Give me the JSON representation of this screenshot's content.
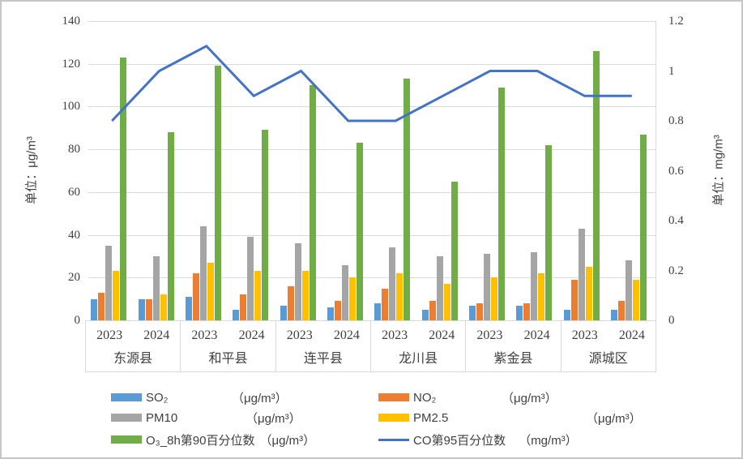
{
  "chart_data": {
    "type": "bar+line",
    "districts": [
      "东源县",
      "和平县",
      "连平县",
      "龙川县",
      "紫金县",
      "源城区"
    ],
    "years": [
      "2023",
      "2024"
    ],
    "left_axis": {
      "title": "单位：μg/m³",
      "min": 0,
      "max": 140,
      "step": 20,
      "ticks": [
        "0",
        "20",
        "40",
        "60",
        "80",
        "100",
        "120",
        "140"
      ]
    },
    "right_axis": {
      "title": "单位：mg/m³",
      "min": 0,
      "max": 1.2,
      "step": 0.2,
      "ticks": [
        "0",
        "0.2",
        "0.4",
        "0.6",
        "0.8",
        "1",
        "1.2"
      ]
    },
    "grid": true,
    "legend_position": "bottom",
    "bar_series": [
      {
        "key": "so2",
        "name": "SO₂",
        "unit": "（μg/m³）",
        "color": "#5B9BD5",
        "values": [
          10,
          10,
          11,
          5,
          7,
          6,
          8,
          5,
          7,
          7,
          5,
          5
        ]
      },
      {
        "key": "no2",
        "name": "NO₂",
        "unit": "（μg/m³）",
        "color": "#ED7D31",
        "values": [
          13,
          10,
          22,
          12,
          16,
          9,
          15,
          9,
          8,
          8,
          19,
          9
        ]
      },
      {
        "key": "pm10",
        "name": "PM10",
        "unit": "（μg/m³）",
        "color": "#A5A5A5",
        "values": [
          35,
          30,
          44,
          39,
          36,
          26,
          34,
          30,
          31,
          32,
          43,
          28
        ]
      },
      {
        "key": "pm25",
        "name": "PM2.5",
        "unit": "（μg/m³）",
        "color": "#FFC000",
        "values": [
          23,
          12,
          27,
          23,
          23,
          20,
          22,
          17,
          20,
          22,
          25,
          19
        ]
      },
      {
        "key": "o3",
        "name": "O₃_8h第90百分位数",
        "unit": "（μg/m³）",
        "color": "#70AD47",
        "values": [
          123,
          88,
          119,
          89,
          110,
          83,
          113,
          65,
          109,
          82,
          126,
          87
        ]
      }
    ],
    "line_series": {
      "key": "co",
      "name": "CO第95百分位数",
      "unit": "（mg/m³）",
      "color": "#4472C4",
      "values": [
        0.8,
        1.0,
        1.1,
        0.9,
        1.0,
        0.8,
        0.8,
        0.9,
        1.0,
        1.0,
        0.9,
        0.9
      ]
    }
  },
  "colors": {
    "grid": "#D9D9D9",
    "axis_text": "#3F3F3F",
    "border": "#C6C6C6",
    "background": "#FFFFFF"
  }
}
